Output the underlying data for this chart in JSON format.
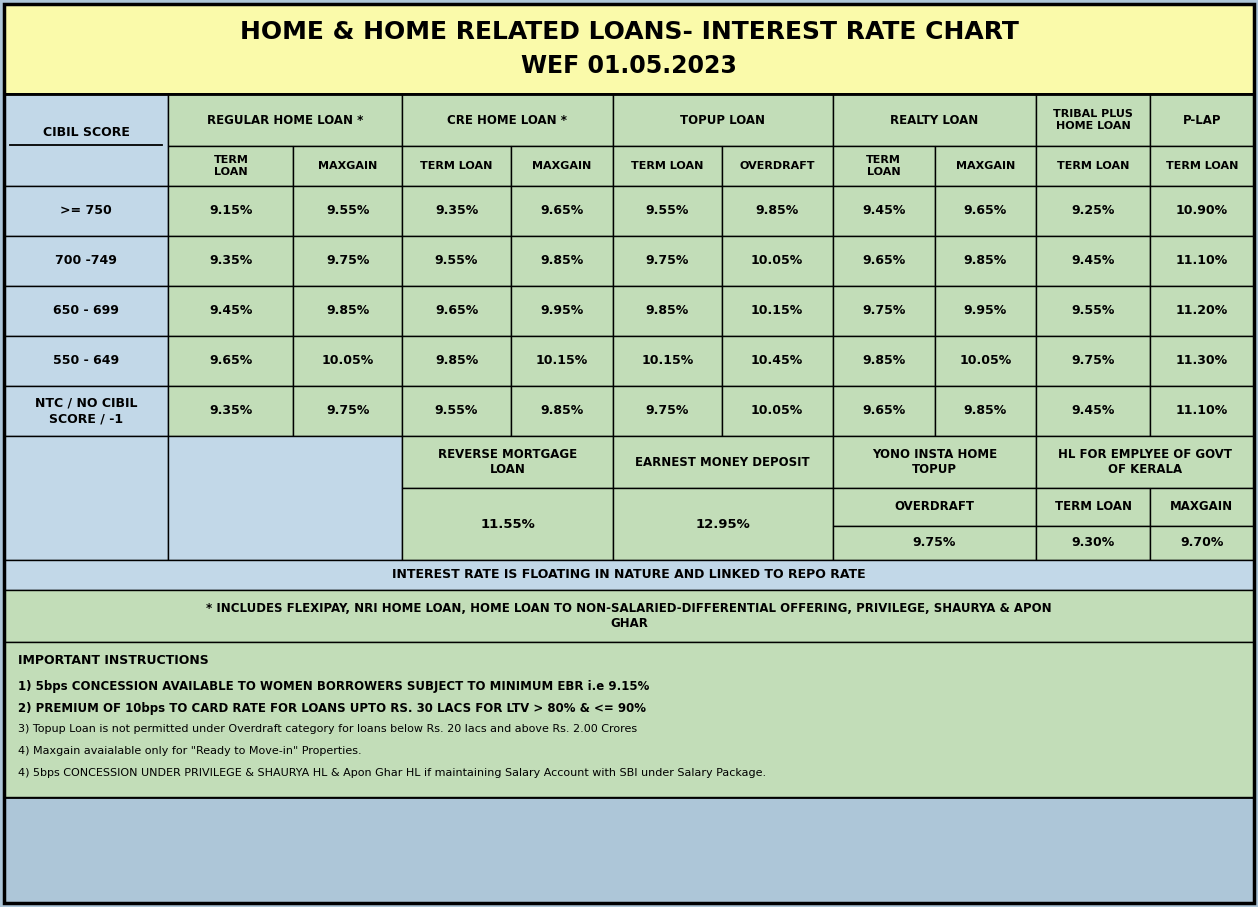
{
  "title_line1": "HOME & HOME RELATED LOANS- INTEREST RATE CHART",
  "title_line2": "WEF 01.05.2023",
  "title_bg": "#FAFAAA",
  "header_bg_blue": "#ADC6D8",
  "data_bg_green": "#C2DDB8",
  "data_bg_lightblue": "#C2D8E8",
  "outer_bg": "#ADC6D8",
  "data_rows": [
    [
      ">= 750",
      "9.15%",
      "9.55%",
      "9.35%",
      "9.65%",
      "9.55%",
      "9.85%",
      "9.45%",
      "9.65%",
      "9.25%",
      "10.90%"
    ],
    [
      "700 -749",
      "9.35%",
      "9.75%",
      "9.55%",
      "9.85%",
      "9.75%",
      "10.05%",
      "9.65%",
      "9.85%",
      "9.45%",
      "11.10%"
    ],
    [
      "650 - 699",
      "9.45%",
      "9.85%",
      "9.65%",
      "9.95%",
      "9.85%",
      "10.15%",
      "9.75%",
      "9.95%",
      "9.55%",
      "11.20%"
    ],
    [
      "550 - 649",
      "9.65%",
      "10.05%",
      "9.85%",
      "10.15%",
      "10.15%",
      "10.45%",
      "9.85%",
      "10.05%",
      "9.75%",
      "11.30%"
    ],
    [
      "NTC / NO CIBIL\nSCORE / -1",
      "9.35%",
      "9.75%",
      "9.55%",
      "9.85%",
      "9.75%",
      "10.05%",
      "9.65%",
      "9.85%",
      "9.45%",
      "11.10%"
    ]
  ],
  "reverse_mortgage_label": "REVERSE MORTGAGE\nLOAN",
  "reverse_mortgage_value": "11.55%",
  "earnest_money_label": "EARNEST MONEY DEPOSIT",
  "earnest_money_value": "12.95%",
  "yono_label": "YONO INSTA HOME\nTOPUP",
  "yono_overdraft_label": "OVERDRAFT",
  "yono_overdraft_value": "9.75%",
  "hl_empl_label": "HL FOR EMPLYEE OF GOVT\nOF KERALA",
  "hl_empl_term_label": "TERM LOAN",
  "hl_empl_term_value": "9.30%",
  "hl_empl_maxgain_label": "MAXGAIN",
  "hl_empl_maxgain_value": "9.70%",
  "floating_note": "INTEREST RATE IS FLOATING IN NATURE AND LINKED TO REPO RATE",
  "includes_note": "* INCLUDES FLEXIPAY, NRI HOME LOAN, HOME LOAN TO NON-SALARIED-DIFFERENTIAL OFFERING, PRIVILEGE, SHAURYA & APON\nGHAR",
  "instructions_title": "IMPORTANT INSTRUCTIONS",
  "instructions": [
    "1) 5bps CONCESSION AVAILABLE TO WOMEN BORROWERS SUBJECT TO MINIMUM EBR i.e 9.15%",
    "2) PREMIUM OF 10bps TO CARD RATE FOR LOANS UPTO RS. 30 LACS FOR LTV > 80% & <= 90%",
    "3) Topup Loan is not permitted under Overdraft category for loans below Rs. 20 lacs and above Rs. 2.00 Crores",
    "4) Maxgain avaialable only for \"Ready to Move-in\" Properties.",
    "4) 5bps CONCESSION UNDER PRIVILEGE & SHAURYA HL & Apon Ghar HL if maintaining Salary Account with SBI under Salary Package."
  ],
  "inst_bold": [
    true,
    true,
    false,
    false,
    false
  ]
}
